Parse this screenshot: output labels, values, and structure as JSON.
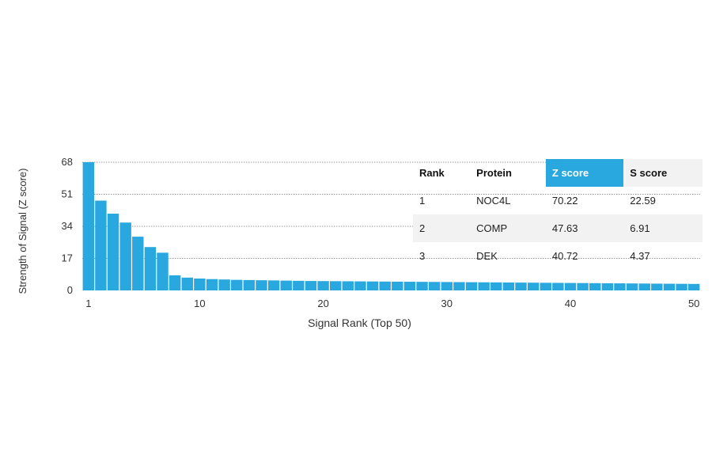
{
  "chart_data": {
    "type": "bar",
    "xlabel": "Signal Rank (Top 50)",
    "ylabel": "Strength of Signal (Z score)",
    "ylim": [
      0,
      68
    ],
    "yticks": [
      "0",
      "17",
      "34",
      "51",
      "68"
    ],
    "xticks": [
      "1",
      "10",
      "20",
      "30",
      "40",
      "50"
    ],
    "grid": true,
    "categories": [
      1,
      2,
      3,
      4,
      5,
      6,
      7,
      8,
      9,
      10,
      11,
      12,
      13,
      14,
      15,
      16,
      17,
      18,
      19,
      20,
      21,
      22,
      23,
      24,
      25,
      26,
      27,
      28,
      29,
      30,
      31,
      32,
      33,
      34,
      35,
      36,
      37,
      38,
      39,
      40,
      41,
      42,
      43,
      44,
      45,
      46,
      47,
      48,
      49,
      50
    ],
    "values": [
      70.22,
      47.63,
      40.72,
      36,
      28.5,
      23,
      20,
      8,
      6.8,
      6.3,
      6,
      5.8,
      5.6,
      5.5,
      5.4,
      5.3,
      5.2,
      5.1,
      5.0,
      4.95,
      4.9,
      4.85,
      4.8,
      4.75,
      4.7,
      4.65,
      4.6,
      4.55,
      4.5,
      4.45,
      4.4,
      4.35,
      4.3,
      4.25,
      4.2,
      4.15,
      4.1,
      4.05,
      4.0,
      3.95,
      3.9,
      3.85,
      3.8,
      3.75,
      3.7,
      3.65,
      3.6,
      3.55,
      3.5,
      3.45
    ],
    "bar_color": "#29a8e0"
  },
  "table": {
    "headers": [
      "Rank",
      "Protein",
      "Z score",
      "S score"
    ],
    "highlight_color": "#29a8e0",
    "rows": [
      [
        "1",
        "NOC4L",
        "70.22",
        "22.59"
      ],
      [
        "2",
        "COMP",
        "47.63",
        "6.91"
      ],
      [
        "3",
        "DEK",
        "40.72",
        "4.37"
      ]
    ]
  }
}
